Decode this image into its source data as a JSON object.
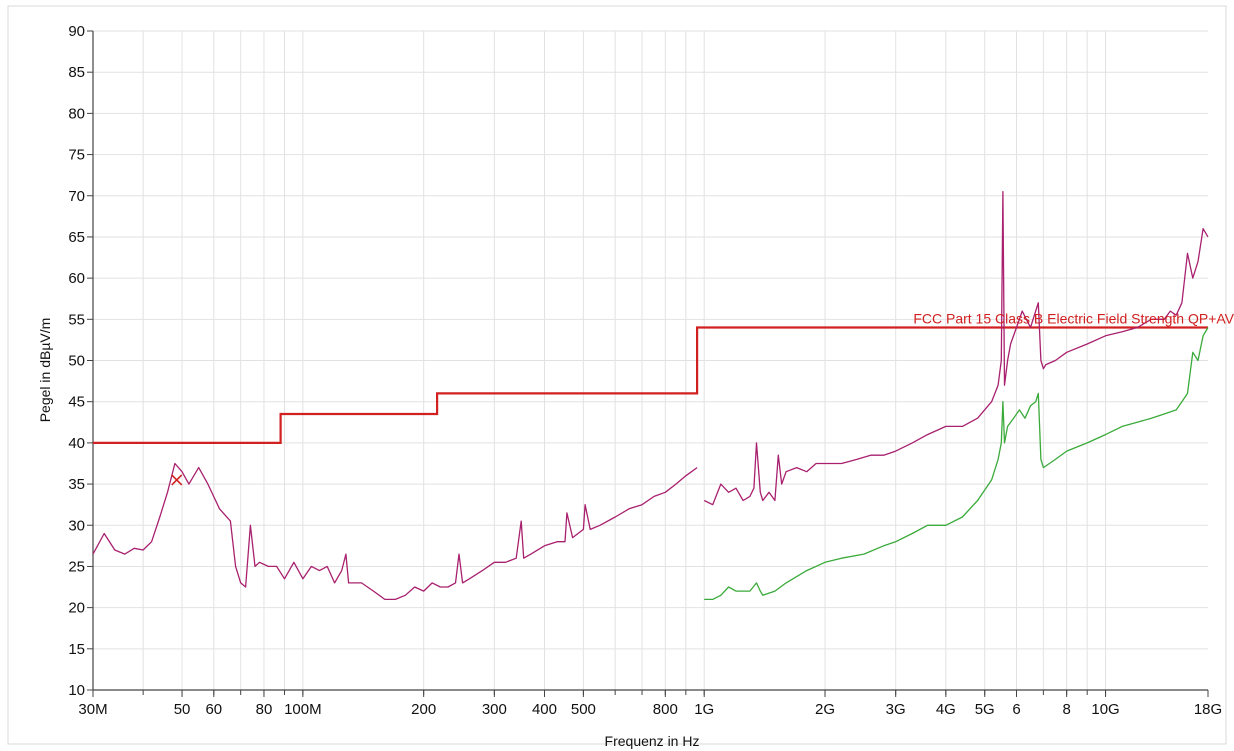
{
  "chart_data": {
    "type": "line",
    "title": "",
    "xlabel": "Frequenz in Hz",
    "ylabel": "Pegel in dBµV/m",
    "x_scale": "log",
    "xlim": [
      30000000,
      18000000000
    ],
    "ylim": [
      10,
      90
    ],
    "grid": true,
    "x_ticks": [
      {
        "value": 30000000,
        "label": "30M"
      },
      {
        "value": 50000000,
        "label": "50"
      },
      {
        "value": 60000000,
        "label": "60"
      },
      {
        "value": 80000000,
        "label": "80"
      },
      {
        "value": 100000000,
        "label": "100M"
      },
      {
        "value": 200000000,
        "label": "200"
      },
      {
        "value": 300000000,
        "label": "300"
      },
      {
        "value": 400000000,
        "label": "400"
      },
      {
        "value": 500000000,
        "label": "500"
      },
      {
        "value": 800000000,
        "label": "800"
      },
      {
        "value": 1000000000,
        "label": "1G"
      },
      {
        "value": 2000000000,
        "label": "2G"
      },
      {
        "value": 3000000000,
        "label": "3G"
      },
      {
        "value": 4000000000,
        "label": "4G"
      },
      {
        "value": 5000000000,
        "label": "5G"
      },
      {
        "value": 6000000000,
        "label": "6"
      },
      {
        "value": 8000000000,
        "label": "8"
      },
      {
        "value": 10000000000,
        "label": "10G"
      },
      {
        "value": 18000000000,
        "label": "18G"
      }
    ],
    "y_ticks": [
      {
        "value": 10,
        "label": "10"
      },
      {
        "value": 15,
        "label": "15"
      },
      {
        "value": 20,
        "label": "20"
      },
      {
        "value": 25,
        "label": "25"
      },
      {
        "value": 30,
        "label": "30"
      },
      {
        "value": 35,
        "label": "35"
      },
      {
        "value": 40,
        "label": "40"
      },
      {
        "value": 45,
        "label": "45"
      },
      {
        "value": 50,
        "label": "50"
      },
      {
        "value": 55,
        "label": "55"
      },
      {
        "value": 60,
        "label": "60"
      },
      {
        "value": 65,
        "label": "65"
      },
      {
        "value": 70,
        "label": "70"
      },
      {
        "value": 75,
        "label": "75"
      },
      {
        "value": 80,
        "label": "80"
      },
      {
        "value": 85,
        "label": "85"
      },
      {
        "value": 90,
        "label": "90"
      }
    ],
    "limit_line": {
      "name": "FCC Part 15 Class B Electric Field Strength QP+AV",
      "color": "#d22020",
      "x": [
        30000000,
        88000000,
        88000000,
        216000000,
        216000000,
        960000000,
        960000000,
        18000000000
      ],
      "y": [
        40,
        40,
        43.5,
        43.5,
        46,
        46,
        54,
        54
      ]
    },
    "series": [
      {
        "color": "#a8206e",
        "x": [
          30000000,
          32000000,
          34000000,
          36000000,
          38000000,
          40000000,
          42000000,
          44000000,
          46000000,
          48000000,
          50000000,
          52000000,
          55000000,
          58000000,
          62000000,
          66000000,
          68000000,
          70000000,
          72000000,
          74000000,
          76000000,
          78000000,
          82000000,
          86000000,
          90000000,
          95000000,
          100000000,
          105000000,
          110000000,
          115000000,
          120000000,
          125000000,
          128000000,
          130000000,
          140000000,
          150000000,
          160000000,
          170000000,
          180000000,
          190000000,
          200000000,
          210000000,
          220000000,
          230000000,
          240000000,
          245000000,
          250000000,
          260000000,
          280000000,
          300000000,
          320000000,
          340000000,
          350000000,
          355000000,
          370000000,
          400000000,
          430000000,
          450000000,
          455000000,
          470000000,
          500000000,
          505000000,
          520000000,
          550000000,
          600000000,
          650000000,
          700000000,
          750000000,
          800000000,
          850000000,
          900000000,
          960000000
        ],
        "y": [
          26.5,
          29,
          27,
          26.5,
          27.2,
          27,
          28,
          31,
          34,
          37.5,
          36.5,
          35,
          37,
          35,
          32,
          30.5,
          25,
          23,
          22.5,
          30,
          25,
          25.5,
          25,
          25,
          23.5,
          25.5,
          23.5,
          25,
          24.5,
          25,
          23,
          24.5,
          26.5,
          23,
          23,
          22,
          21,
          21,
          21.5,
          22.5,
          22,
          23,
          22.5,
          22.5,
          23,
          26.5,
          23,
          23.5,
          24.5,
          25.5,
          25.5,
          26,
          30.5,
          26,
          26.5,
          27.5,
          28,
          28,
          31.5,
          28.5,
          29.5,
          32.5,
          29.5,
          30,
          31,
          32,
          32.5,
          33.5,
          34,
          35,
          36,
          37
        ]
      },
      {
        "color": "#a8206e",
        "x": [
          1000000000,
          1050000000,
          1100000000,
          1150000000,
          1200000000,
          1250000000,
          1300000000,
          1330000000,
          1350000000,
          1380000000,
          1400000000,
          1450000000,
          1500000000,
          1530000000,
          1560000000,
          1600000000,
          1700000000,
          1800000000,
          1900000000,
          2000000000,
          2200000000,
          2400000000,
          2600000000,
          2800000000,
          3000000000,
          3300000000,
          3600000000,
          4000000000,
          4400000000,
          4800000000,
          5200000000,
          5400000000,
          5500000000,
          5550000000,
          5600000000,
          5700000000,
          5800000000,
          6000000000,
          6200000000,
          6500000000,
          6800000000,
          6900000000,
          7000000000,
          7100000000,
          7500000000,
          8000000000,
          9000000000,
          10000000000,
          11000000000,
          12000000000,
          13000000000,
          14000000000,
          14500000000,
          15000000000,
          15500000000,
          16000000000,
          16500000000,
          17000000000,
          17500000000,
          18000000000
        ],
        "y": [
          33,
          32.5,
          35,
          34,
          34.5,
          33,
          33.5,
          34.5,
          40,
          34,
          33,
          34,
          33,
          38.5,
          35,
          36.5,
          37,
          36.5,
          37.5,
          37.5,
          37.5,
          38,
          38.5,
          38.5,
          39,
          40,
          41,
          42,
          42,
          43,
          45,
          47,
          50,
          70.5,
          47,
          50,
          52,
          54,
          56,
          54,
          57,
          50,
          49,
          49.5,
          50,
          51,
          52,
          53,
          53.5,
          54,
          55,
          55,
          56,
          55.5,
          57,
          63,
          60,
          62,
          66,
          65
        ]
      },
      {
        "color": "#3aaa3a",
        "x": [
          1000000000,
          1050000000,
          1100000000,
          1150000000,
          1200000000,
          1300000000,
          1350000000,
          1380000000,
          1400000000,
          1500000000,
          1600000000,
          1800000000,
          2000000000,
          2200000000,
          2500000000,
          2800000000,
          3000000000,
          3300000000,
          3600000000,
          4000000000,
          4400000000,
          4800000000,
          5200000000,
          5400000000,
          5500000000,
          5550000000,
          5600000000,
          5700000000,
          5900000000,
          6100000000,
          6300000000,
          6500000000,
          6700000000,
          6800000000,
          6900000000,
          7000000000,
          7500000000,
          8000000000,
          9000000000,
          10000000000,
          11000000000,
          12000000000,
          13000000000,
          14000000000,
          15000000000,
          15500000000,
          16000000000,
          16500000000,
          17000000000,
          17500000000,
          18000000000
        ],
        "y": [
          21,
          21,
          21.5,
          22.5,
          22,
          22,
          23,
          22,
          21.5,
          22,
          23,
          24.5,
          25.5,
          26,
          26.5,
          27.5,
          28,
          29,
          30,
          30,
          31,
          33,
          35.5,
          38,
          40,
          45,
          40,
          42,
          43,
          44,
          43,
          44.5,
          45,
          46,
          38,
          37,
          38,
          39,
          40,
          41,
          42,
          42.5,
          43,
          43.5,
          44,
          45,
          46,
          51,
          50,
          53,
          54
        ]
      }
    ],
    "markers": [
      {
        "x": 48500000,
        "y": 35.5,
        "symbol": "x",
        "color": "#d22020"
      }
    ]
  }
}
